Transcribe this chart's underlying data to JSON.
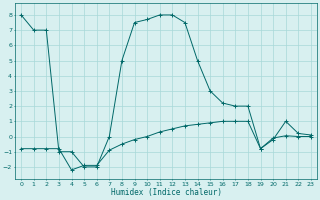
{
  "xlabel": "Humidex (Indice chaleur)",
  "bg_color": "#d8f0f0",
  "grid_color": "#a8d8d8",
  "line_color": "#006868",
  "xlim": [
    -0.5,
    23.5
  ],
  "ylim": [
    -2.8,
    8.8
  ],
  "xticks": [
    0,
    1,
    2,
    3,
    4,
    5,
    6,
    7,
    8,
    9,
    10,
    11,
    12,
    13,
    14,
    15,
    16,
    17,
    18,
    19,
    20,
    21,
    22,
    23
  ],
  "yticks": [
    -2,
    -1,
    0,
    1,
    2,
    3,
    4,
    5,
    6,
    7,
    8
  ],
  "line1_x": [
    0,
    1,
    2,
    3,
    4,
    5,
    6,
    7,
    8,
    9,
    10,
    11,
    12,
    13,
    14,
    15,
    16,
    17,
    18,
    19,
    20,
    21,
    22,
    23
  ],
  "line1_y": [
    8,
    7,
    7,
    -1,
    -1,
    -2,
    -2,
    0,
    5,
    7.5,
    7.7,
    8,
    8,
    7.5,
    5,
    3,
    2.2,
    2,
    2,
    -0.8,
    -0.2,
    1,
    0.2,
    0.1
  ],
  "line2_x": [
    0,
    1,
    2,
    3,
    4,
    5,
    6,
    7,
    8,
    9,
    10,
    11,
    12,
    13,
    14,
    15,
    16,
    17,
    18,
    19,
    20,
    21,
    22,
    23
  ],
  "line2_y": [
    -0.8,
    -0.8,
    -0.8,
    -0.8,
    -2.2,
    -1.9,
    -1.9,
    -0.9,
    -0.5,
    -0.2,
    0.0,
    0.3,
    0.5,
    0.7,
    0.8,
    0.9,
    1.0,
    1.0,
    1.0,
    -0.8,
    -0.1,
    0.05,
    0.0,
    0.0
  ],
  "marker": "+",
  "tick_fontsize": 4.5,
  "xlabel_fontsize": 5.5,
  "linewidth": 0.7,
  "markersize": 2.5
}
